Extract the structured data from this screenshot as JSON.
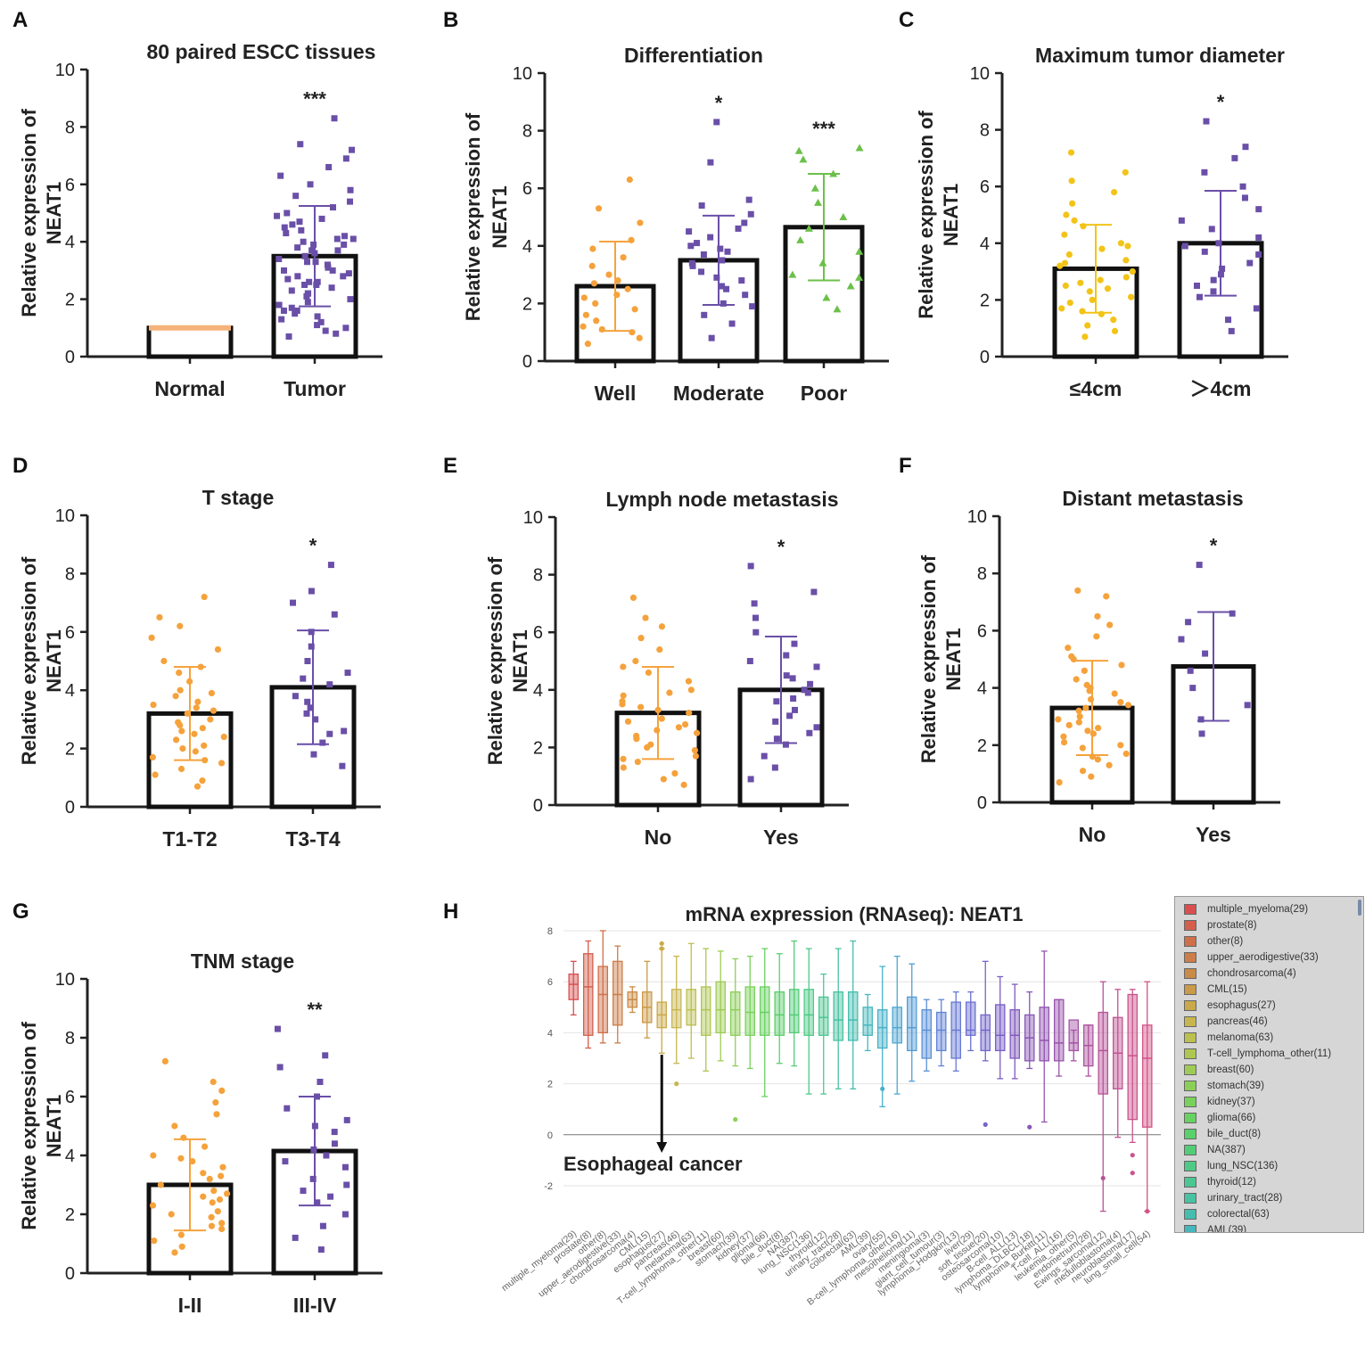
{
  "colors": {
    "orange": "#f5a23c",
    "purple": "#6a4fa8",
    "yellow": "#f2c418",
    "green": "#6cc04a",
    "normal_bar": "#f5b27a",
    "arrow": "#111111"
  },
  "chart_data": [
    {
      "panel": "A",
      "type": "bar",
      "title": "80 paired ESCC tissues",
      "ylabel_lines": [
        "Relative expression of",
        "NEAT1"
      ],
      "ylim": [
        0,
        10
      ],
      "yticks": [
        "0",
        "2",
        "4",
        "6",
        "8",
        "10"
      ],
      "categories": [
        "Normal",
        "Tumor"
      ],
      "means": [
        1.0,
        3.5
      ],
      "sd": [
        0,
        1.75
      ],
      "significance": [
        "",
        "***"
      ],
      "point_colors": [
        "orange",
        "purple"
      ],
      "point_shapes": [
        "circle",
        "square"
      ],
      "points": [
        [],
        [
          0.7,
          0.8,
          0.9,
          1.0,
          1.1,
          1.2,
          1.3,
          1.4,
          1.5,
          1.6,
          1.7,
          1.8,
          1.9,
          2.0,
          2.1,
          2.2,
          2.3,
          2.4,
          2.5,
          2.5,
          2.6,
          2.7,
          2.8,
          2.9,
          3.0,
          3.0,
          3.1,
          3.2,
          3.3,
          3.4,
          3.5,
          3.6,
          3.7,
          3.8,
          3.9,
          4.0,
          4.1,
          4.2,
          4.3,
          4.4,
          4.5,
          4.6,
          4.7,
          4.8,
          4.9,
          5.0,
          5.2,
          5.4,
          5.6,
          5.8,
          6.0,
          6.3,
          6.6,
          6.9,
          7.2,
          7.4,
          8.3,
          2.2,
          2.8,
          3.3,
          3.7,
          4.1,
          1.6,
          2.6,
          3.9
        ]
      ]
    },
    {
      "panel": "B",
      "type": "bar",
      "title": "Differentiation",
      "ylabel_lines": [
        "Relative expression of",
        "NEAT1"
      ],
      "ylim": [
        0,
        10
      ],
      "yticks": [
        "0",
        "2",
        "4",
        "6",
        "8",
        "10"
      ],
      "categories": [
        "Well",
        "Moderate",
        "Poor"
      ],
      "means": [
        2.6,
        3.5,
        4.65
      ],
      "sd": [
        1.55,
        1.55,
        1.85
      ],
      "significance": [
        "",
        "*",
        "***"
      ],
      "point_colors": [
        "orange",
        "purple",
        "green"
      ],
      "point_shapes": [
        "circle",
        "square",
        "triangle"
      ],
      "points": [
        [
          0.6,
          0.8,
          1.0,
          1.2,
          1.4,
          1.6,
          1.8,
          2.0,
          2.3,
          2.5,
          2.7,
          3.0,
          3.3,
          3.6,
          3.9,
          4.2,
          4.8,
          5.3,
          6.3,
          1.1,
          2.2,
          2.8
        ],
        [
          0.8,
          1.3,
          1.6,
          2.0,
          2.3,
          2.6,
          2.9,
          3.1,
          3.3,
          3.5,
          3.7,
          3.9,
          4.1,
          4.3,
          4.5,
          4.8,
          5.1,
          5.4,
          5.6,
          6.9,
          8.3,
          2.8,
          3.4,
          4.0,
          1.9,
          2.5,
          3.8,
          4.6
        ],
        [
          1.8,
          2.2,
          2.6,
          3.0,
          3.4,
          3.8,
          4.2,
          4.6,
          5.0,
          5.5,
          6.0,
          6.5,
          7.0,
          7.3,
          7.4,
          2.9
        ]
      ]
    },
    {
      "panel": "C",
      "type": "bar",
      "title": "Maximum tumor diameter",
      "ylabel_lines": [
        "Relative expression of",
        "NEAT1"
      ],
      "ylim": [
        0,
        10
      ],
      "yticks": [
        "0",
        "2",
        "4",
        "6",
        "8",
        "10"
      ],
      "categories": [
        "≤4cm",
        "＞4cm"
      ],
      "means": [
        3.1,
        4.0
      ],
      "sd": [
        1.55,
        1.85
      ],
      "significance": [
        "",
        "*"
      ],
      "point_colors": [
        "yellow",
        "purple"
      ],
      "point_shapes": [
        "circle",
        "square"
      ],
      "points": [
        [
          0.7,
          0.9,
          1.1,
          1.3,
          1.5,
          1.7,
          1.9,
          2.1,
          2.3,
          2.5,
          2.6,
          2.8,
          3.0,
          3.2,
          3.4,
          3.6,
          3.8,
          4.0,
          4.3,
          4.6,
          5.0,
          5.4,
          5.8,
          6.2,
          6.5,
          7.2,
          2.0,
          2.7,
          3.3,
          1.6,
          2.4,
          3.9,
          4.8
        ],
        [
          0.9,
          1.3,
          1.7,
          2.1,
          2.5,
          2.9,
          3.3,
          3.6,
          3.9,
          4.2,
          4.5,
          4.8,
          5.2,
          5.6,
          6.0,
          6.5,
          7.0,
          7.4,
          8.3,
          2.3,
          3.1,
          4.0,
          2.7,
          3.7
        ]
      ]
    },
    {
      "panel": "D",
      "type": "bar",
      "title": "T stage",
      "ylabel_lines": [
        "Relative expression of",
        "NEAT1"
      ],
      "ylim": [
        0,
        10
      ],
      "yticks": [
        "0",
        "2",
        "4",
        "6",
        "8",
        "10"
      ],
      "categories": [
        "T1-T2",
        "T3-T4"
      ],
      "means": [
        3.2,
        4.1
      ],
      "sd": [
        1.6,
        1.95
      ],
      "significance": [
        "",
        "*"
      ],
      "point_colors": [
        "orange",
        "purple"
      ],
      "point_shapes": [
        "circle",
        "square"
      ],
      "points": [
        [
          0.7,
          0.9,
          1.1,
          1.3,
          1.5,
          1.7,
          1.9,
          2.1,
          2.3,
          2.5,
          2.6,
          2.8,
          3.0,
          3.2,
          3.4,
          3.6,
          3.8,
          4.0,
          4.3,
          4.6,
          5.0,
          5.4,
          5.8,
          6.2,
          6.5,
          7.2,
          2.0,
          2.7,
          3.3,
          1.6,
          2.4,
          3.9,
          4.8,
          2.9,
          3.5
        ],
        [
          1.4,
          1.8,
          2.2,
          2.6,
          3.0,
          3.4,
          3.8,
          4.2,
          4.6,
          5.0,
          5.5,
          6.0,
          6.6,
          7.0,
          7.4,
          8.3,
          3.2,
          4.4,
          2.5,
          3.6
        ]
      ]
    },
    {
      "panel": "E",
      "type": "bar",
      "title": "Lymph node metastasis",
      "ylabel_lines": [
        "Relative expression of",
        "NEAT1"
      ],
      "ylim": [
        0,
        10
      ],
      "yticks": [
        "0",
        "2",
        "4",
        "6",
        "8",
        "10"
      ],
      "categories": [
        "No",
        "Yes"
      ],
      "means": [
        3.2,
        4.0
      ],
      "sd": [
        1.6,
        1.85
      ],
      "significance": [
        "",
        "*"
      ],
      "point_colors": [
        "orange",
        "purple"
      ],
      "point_shapes": [
        "circle",
        "square"
      ],
      "points": [
        [
          0.7,
          0.9,
          1.1,
          1.3,
          1.5,
          1.7,
          1.9,
          2.1,
          2.3,
          2.5,
          2.6,
          2.8,
          3.0,
          3.2,
          3.4,
          3.6,
          3.8,
          4.0,
          4.3,
          4.6,
          5.0,
          5.4,
          5.8,
          6.2,
          6.5,
          7.2,
          2.0,
          2.7,
          3.3,
          1.6,
          2.4,
          3.9,
          4.8,
          2.9,
          3.5
        ],
        [
          0.9,
          1.3,
          1.7,
          2.1,
          2.5,
          2.9,
          3.3,
          3.6,
          3.9,
          4.2,
          4.5,
          4.8,
          5.2,
          5.6,
          6.0,
          6.5,
          7.0,
          7.4,
          8.3,
          2.3,
          3.1,
          4.0,
          2.7,
          3.7,
          4.4,
          5.0
        ]
      ]
    },
    {
      "panel": "F",
      "type": "bar",
      "title": "Distant metastasis",
      "ylabel_lines": [
        "Relative expression of",
        "NEAT1"
      ],
      "ylim": [
        0,
        10
      ],
      "yticks": [
        "0",
        "2",
        "4",
        "6",
        "8",
        "10"
      ],
      "categories": [
        "No",
        "Yes"
      ],
      "means": [
        3.3,
        4.75
      ],
      "sd": [
        1.65,
        1.9
      ],
      "significance": [
        "",
        "*"
      ],
      "point_colors": [
        "orange",
        "purple"
      ],
      "point_shapes": [
        "circle",
        "square"
      ],
      "points": [
        [
          0.7,
          0.9,
          1.1,
          1.3,
          1.5,
          1.7,
          1.9,
          2.1,
          2.3,
          2.5,
          2.6,
          2.8,
          3.0,
          3.2,
          3.4,
          3.6,
          3.8,
          4.0,
          4.3,
          4.6,
          5.0,
          5.4,
          5.8,
          6.2,
          6.5,
          7.2,
          7.4,
          2.0,
          2.7,
          3.3,
          1.6,
          2.4,
          3.9,
          4.8,
          2.9,
          3.5,
          4.1,
          5.1
        ],
        [
          2.4,
          2.9,
          3.4,
          4.0,
          4.6,
          5.2,
          5.7,
          6.3,
          6.6,
          8.3
        ]
      ]
    },
    {
      "panel": "G",
      "type": "bar",
      "title": "TNM stage",
      "ylabel_lines": [
        "Relative expression of",
        "NEAT1"
      ],
      "ylim": [
        0,
        10
      ],
      "yticks": [
        "0",
        "2",
        "4",
        "6",
        "8",
        "10"
      ],
      "categories": [
        "I-II",
        "III-IV"
      ],
      "means": [
        3.0,
        4.15
      ],
      "sd": [
        1.55,
        1.85
      ],
      "significance": [
        "",
        "**"
      ],
      "point_colors": [
        "orange",
        "purple"
      ],
      "point_shapes": [
        "circle",
        "square"
      ],
      "points": [
        [
          0.7,
          0.9,
          1.1,
          1.3,
          1.5,
          1.7,
          1.9,
          2.1,
          2.3,
          2.5,
          2.6,
          2.8,
          3.0,
          3.2,
          3.4,
          3.6,
          3.8,
          4.0,
          4.3,
          4.6,
          5.0,
          5.4,
          5.8,
          6.2,
          6.5,
          7.2,
          2.0,
          2.7,
          3.3,
          1.6,
          2.4,
          3.9
        ],
        [
          0.8,
          1.2,
          1.6,
          2.0,
          2.4,
          2.8,
          3.2,
          3.6,
          4.0,
          4.4,
          4.8,
          5.2,
          5.6,
          6.0,
          6.5,
          7.0,
          7.4,
          8.3,
          3.0,
          4.2,
          2.6,
          3.8,
          5.0
        ]
      ]
    },
    {
      "panel": "H",
      "type": "boxplot",
      "title": "mRNA expression (RNAseq): NEAT1",
      "ylim": [
        -3.2,
        8
      ],
      "yticks": [
        "8",
        "6",
        "4",
        "2",
        "0",
        "-2"
      ],
      "ytick_values": [
        8,
        6,
        4,
        2,
        0,
        -2
      ],
      "annotation": "Esophageal cancer",
      "annotation_target": "esophagus(27)",
      "categories": [
        "multiple_myeloma(29)",
        "prostate(8)",
        "other(8)",
        "upper_aerodigestive(33)",
        "chondrosarcoma(4)",
        "CML(15)",
        "esophagus(27)",
        "pancreas(46)",
        "melanoma(63)",
        "T-cell_lymphoma_other(11)",
        "breast(60)",
        "stomach(39)",
        "kidney(37)",
        "glioma(66)",
        "bile_duct(8)",
        "NA(387)",
        "lung_NSC(136)",
        "thyroid(12)",
        "urinary_tract(28)",
        "colorectal(63)",
        "AML(39)",
        "ovary(55)",
        "B-cell_lymphoma_other(16)",
        "mesothelioma(11)",
        "meningioma(3)",
        "giant_cell_tumour(3)",
        "lymphoma_Hodgkin(13)",
        "liver(29)",
        "soft_tissue(20)",
        "osteosarcoma(10)",
        "B-cell_ALL(13)",
        "lymphoma_DLBCL(18)",
        "lymphoma_Burkitt(11)",
        "T-cell_ALL(16)",
        "leukemia_other(5)",
        "endometrium(28)",
        "Ewings_sarcoma(12)",
        "medulloblastoma(4)",
        "neuroblastoma(17)",
        "lung_small_cell(54)"
      ],
      "box_colors": [
        "#d94f4f",
        "#d35f4c",
        "#cf704a",
        "#cc7d48",
        "#c98b47",
        "#c99a48",
        "#c9a94a",
        "#c7b64f",
        "#bcc04f",
        "#aec652",
        "#9ecb55",
        "#8ccf58",
        "#79d15c",
        "#68d162",
        "#5bcf6b",
        "#53cc78",
        "#4fca86",
        "#4cc693",
        "#49c2a1",
        "#47bdaf",
        "#46b8bd",
        "#48b1c9",
        "#4ea7d0",
        "#559cd4",
        "#5b90d6",
        "#6184d6",
        "#6679d4",
        "#6c6fd0",
        "#7266cb",
        "#795ec5",
        "#815abd",
        "#8957b6",
        "#9155b0",
        "#9a54aa",
        "#a453a4",
        "#ae539e",
        "#b85398",
        "#c15392",
        "#ca538c",
        "#d25387"
      ],
      "medians": [
        5.9,
        5.8,
        5.5,
        5.5,
        5.3,
        5.0,
        4.7,
        4.9,
        4.9,
        4.9,
        4.9,
        4.9,
        4.8,
        4.8,
        4.7,
        4.7,
        4.7,
        4.6,
        4.5,
        4.5,
        4.3,
        4.2,
        4.2,
        4.2,
        4.1,
        4.1,
        4.1,
        4.1,
        4.1,
        3.9,
        3.9,
        3.8,
        3.7,
        3.6,
        3.6,
        3.5,
        3.3,
        3.2,
        3.1,
        3.0
      ],
      "q1": [
        5.3,
        3.9,
        4.0,
        4.3,
        5.0,
        4.4,
        4.2,
        4.2,
        4.3,
        3.9,
        4.0,
        3.9,
        3.9,
        3.9,
        3.9,
        4.0,
        3.9,
        3.9,
        3.7,
        3.7,
        3.9,
        3.4,
        3.6,
        3.3,
        3.0,
        3.3,
        3.0,
        3.9,
        3.3,
        3.3,
        3.0,
        2.9,
        2.9,
        2.9,
        3.3,
        2.7,
        1.6,
        1.8,
        0.6,
        0.3
      ],
      "q3": [
        6.3,
        7.1,
        6.6,
        6.8,
        5.6,
        5.6,
        5.2,
        5.7,
        5.7,
        5.8,
        6.0,
        5.6,
        5.8,
        5.8,
        5.6,
        5.7,
        5.7,
        5.4,
        5.6,
        5.6,
        5.0,
        4.9,
        5.0,
        5.4,
        4.9,
        4.8,
        5.2,
        5.2,
        4.7,
        5.1,
        4.9,
        4.7,
        5.0,
        5.3,
        4.5,
        4.3,
        4.8,
        4.6,
        5.5,
        4.3
      ],
      "whisker_low": [
        4.7,
        3.4,
        3.6,
        3.6,
        4.8,
        3.8,
        3.2,
        2.8,
        3.0,
        2.5,
        2.9,
        2.7,
        2.6,
        1.5,
        2.8,
        2.7,
        1.6,
        1.6,
        1.8,
        1.8,
        3.3,
        1.1,
        1.6,
        2.1,
        2.5,
        2.7,
        2.5,
        3.3,
        2.9,
        2.2,
        2.2,
        2.6,
        0.5,
        2.3,
        2.9,
        2.3,
        -3.0,
        -0.1,
        -0.3,
        -3.0
      ],
      "whisker_high": [
        6.8,
        7.6,
        8.0,
        7.4,
        5.8,
        6.8,
        7.3,
        7.0,
        7.5,
        7.3,
        7.2,
        6.9,
        7.0,
        7.3,
        7.1,
        7.6,
        7.3,
        6.3,
        7.3,
        7.6,
        5.5,
        6.6,
        7.0,
        6.7,
        5.3,
        5.3,
        5.6,
        5.6,
        6.8,
        6.2,
        5.9,
        5.6,
        7.2,
        5.3,
        4.1,
        4.3,
        6.0,
        5.7,
        5.7,
        6.0
      ],
      "outliers": [
        [],
        [],
        [],
        [],
        [],
        [],
        [
          7.3,
          7.5
        ],
        [
          2.0
        ],
        [],
        [],
        [],
        [
          0.6
        ],
        [],
        [],
        [],
        [],
        [],
        [],
        [],
        [],
        [],
        [
          1.8
        ],
        [],
        [],
        [],
        [],
        [],
        [],
        [
          0.4
        ],
        [],
        [],
        [
          0.3
        ],
        [],
        [],
        [],
        [],
        [
          -1.7
        ],
        [],
        [
          -0.8,
          -1.5
        ],
        [
          -3.0
        ]
      ]
    }
  ],
  "panel_labels": [
    "A",
    "B",
    "C",
    "D",
    "E",
    "F",
    "G",
    "H"
  ],
  "legend": {
    "items": [
      {
        "label": "multiple_myeloma(29)",
        "color": "#d94f4f"
      },
      {
        "label": "prostate(8)",
        "color": "#d35f4c"
      },
      {
        "label": "other(8)",
        "color": "#cf704a"
      },
      {
        "label": "upper_aerodigestive(33)",
        "color": "#cc7d48"
      },
      {
        "label": "chondrosarcoma(4)",
        "color": "#c98b47"
      },
      {
        "label": "CML(15)",
        "color": "#c99a48"
      },
      {
        "label": "esophagus(27)",
        "color": "#c9a94a"
      },
      {
        "label": "pancreas(46)",
        "color": "#c7b64f"
      },
      {
        "label": "melanoma(63)",
        "color": "#bcc04f"
      },
      {
        "label": "T-cell_lymphoma_other(11)",
        "color": "#aec652"
      },
      {
        "label": "breast(60)",
        "color": "#9ecb55"
      },
      {
        "label": "stomach(39)",
        "color": "#8ccf58"
      },
      {
        "label": "kidney(37)",
        "color": "#79d15c"
      },
      {
        "label": "glioma(66)",
        "color": "#68d162"
      },
      {
        "label": "bile_duct(8)",
        "color": "#5bcf6b"
      },
      {
        "label": "NA(387)",
        "color": "#53cc78"
      },
      {
        "label": "lung_NSC(136)",
        "color": "#4fca86"
      },
      {
        "label": "thyroid(12)",
        "color": "#4cc693"
      },
      {
        "label": "urinary_tract(28)",
        "color": "#49c2a1"
      },
      {
        "label": "colorectal(63)",
        "color": "#47bdaf"
      },
      {
        "label": "AML(39)",
        "color": "#46b8bd"
      }
    ]
  }
}
